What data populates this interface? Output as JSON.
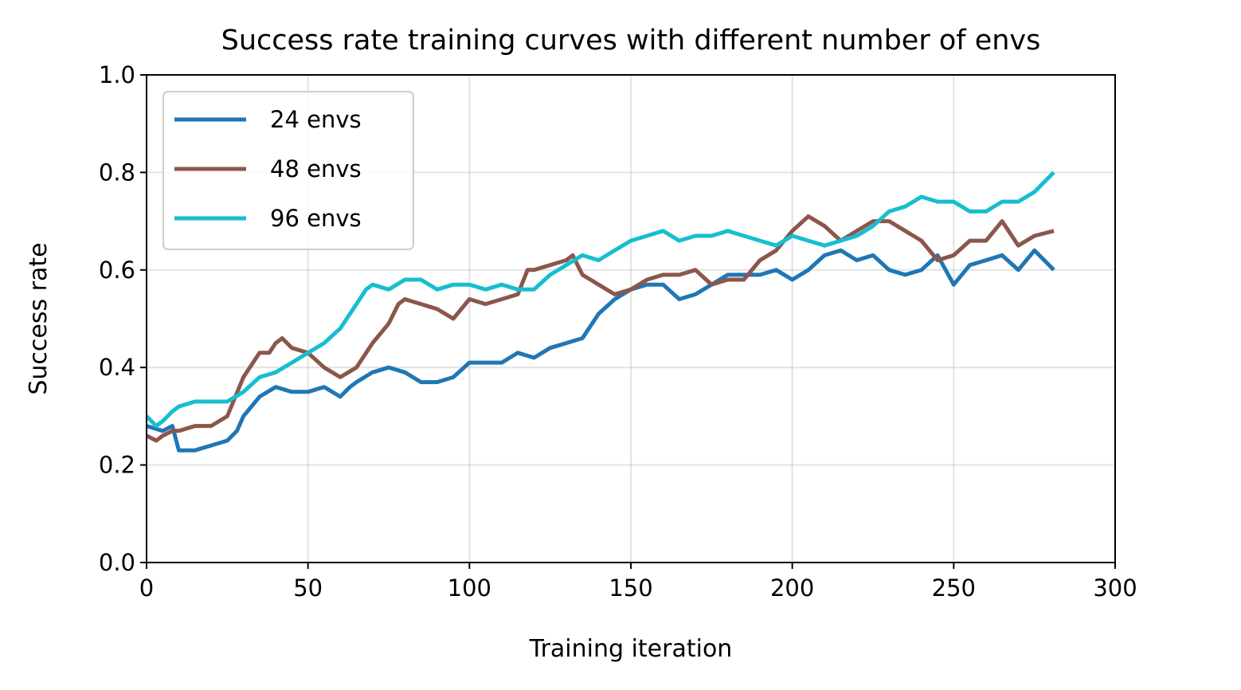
{
  "chart_data": {
    "type": "line",
    "title": "Success rate training curves with different number of envs",
    "xlabel": "Training iteration",
    "ylabel": "Success rate",
    "xlim": [
      0,
      300
    ],
    "ylim": [
      0.0,
      1.0
    ],
    "xticks": [
      "0",
      "50",
      "100",
      "150",
      "200",
      "250",
      "300"
    ],
    "yticks": [
      "0.0",
      "0.2",
      "0.4",
      "0.6",
      "0.8",
      "1.0"
    ],
    "grid": true,
    "legend_position": "upper-left",
    "series": [
      {
        "name": "24 envs",
        "color": "#1f77b4",
        "x": [
          0,
          5,
          8,
          10,
          12,
          15,
          20,
          25,
          28,
          30,
          35,
          40,
          45,
          50,
          55,
          60,
          63,
          65,
          70,
          75,
          80,
          85,
          90,
          95,
          100,
          105,
          110,
          115,
          120,
          125,
          130,
          135,
          140,
          145,
          150,
          155,
          160,
          165,
          170,
          175,
          180,
          185,
          190,
          195,
          200,
          205,
          210,
          215,
          220,
          225,
          230,
          235,
          240,
          245,
          250,
          255,
          260,
          265,
          270,
          275,
          281
        ],
        "y": [
          0.28,
          0.27,
          0.28,
          0.23,
          0.23,
          0.23,
          0.24,
          0.25,
          0.27,
          0.3,
          0.34,
          0.36,
          0.35,
          0.35,
          0.36,
          0.34,
          0.36,
          0.37,
          0.39,
          0.4,
          0.39,
          0.37,
          0.37,
          0.38,
          0.41,
          0.41,
          0.41,
          0.43,
          0.42,
          0.44,
          0.45,
          0.46,
          0.51,
          0.54,
          0.56,
          0.57,
          0.57,
          0.54,
          0.55,
          0.57,
          0.59,
          0.59,
          0.59,
          0.6,
          0.58,
          0.6,
          0.63,
          0.64,
          0.62,
          0.63,
          0.6,
          0.59,
          0.6,
          0.63,
          0.57,
          0.61,
          0.62,
          0.63,
          0.6,
          0.64,
          0.6
        ]
      },
      {
        "name": "48 envs",
        "color": "#8c564b",
        "x": [
          0,
          3,
          5,
          8,
          10,
          15,
          20,
          25,
          30,
          35,
          38,
          40,
          42,
          45,
          50,
          55,
          60,
          65,
          70,
          75,
          78,
          80,
          85,
          90,
          95,
          100,
          105,
          110,
          115,
          118,
          120,
          125,
          130,
          132,
          135,
          140,
          145,
          150,
          155,
          160,
          165,
          170,
          175,
          180,
          185,
          190,
          195,
          200,
          205,
          210,
          215,
          220,
          225,
          230,
          235,
          240,
          245,
          250,
          255,
          260,
          265,
          270,
          275,
          281
        ],
        "y": [
          0.26,
          0.25,
          0.26,
          0.27,
          0.27,
          0.28,
          0.28,
          0.3,
          0.38,
          0.43,
          0.43,
          0.45,
          0.46,
          0.44,
          0.43,
          0.4,
          0.38,
          0.4,
          0.45,
          0.49,
          0.53,
          0.54,
          0.53,
          0.52,
          0.5,
          0.54,
          0.53,
          0.54,
          0.55,
          0.6,
          0.6,
          0.61,
          0.62,
          0.63,
          0.59,
          0.57,
          0.55,
          0.56,
          0.58,
          0.59,
          0.59,
          0.6,
          0.57,
          0.58,
          0.58,
          0.62,
          0.64,
          0.68,
          0.71,
          0.69,
          0.66,
          0.68,
          0.7,
          0.7,
          0.68,
          0.66,
          0.62,
          0.63,
          0.66,
          0.66,
          0.7,
          0.65,
          0.67,
          0.68
        ]
      },
      {
        "name": "96 envs",
        "color": "#17becf",
        "x": [
          0,
          3,
          5,
          8,
          10,
          15,
          20,
          25,
          30,
          35,
          40,
          45,
          50,
          55,
          60,
          65,
          68,
          70,
          75,
          80,
          85,
          90,
          95,
          100,
          105,
          110,
          115,
          120,
          125,
          130,
          135,
          140,
          145,
          150,
          155,
          160,
          165,
          170,
          175,
          180,
          185,
          190,
          195,
          200,
          205,
          210,
          215,
          220,
          225,
          230,
          235,
          240,
          245,
          250,
          255,
          260,
          265,
          270,
          275,
          281
        ],
        "y": [
          0.3,
          0.28,
          0.29,
          0.31,
          0.32,
          0.33,
          0.33,
          0.33,
          0.35,
          0.38,
          0.39,
          0.41,
          0.43,
          0.45,
          0.48,
          0.53,
          0.56,
          0.57,
          0.56,
          0.58,
          0.58,
          0.56,
          0.57,
          0.57,
          0.56,
          0.57,
          0.56,
          0.56,
          0.59,
          0.61,
          0.63,
          0.62,
          0.64,
          0.66,
          0.67,
          0.68,
          0.66,
          0.67,
          0.67,
          0.68,
          0.67,
          0.66,
          0.65,
          0.67,
          0.66,
          0.65,
          0.66,
          0.67,
          0.69,
          0.72,
          0.73,
          0.75,
          0.74,
          0.74,
          0.72,
          0.72,
          0.74,
          0.74,
          0.76,
          0.8
        ]
      }
    ]
  }
}
